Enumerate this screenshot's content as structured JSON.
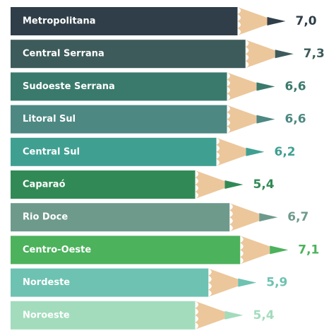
{
  "chart_data": {
    "type": "pencil-bar",
    "categories": [
      "Metropolitana",
      "Central Serrana",
      "Sudoeste Serrana",
      "Litoral Sul",
      "Central Sul",
      "Caparaó",
      "Rio Doce",
      "Centro-Oeste",
      "Nordeste",
      "Noroeste"
    ],
    "values": [
      7.0,
      7.3,
      6.6,
      6.6,
      6.2,
      5.4,
      6.7,
      7.1,
      5.9,
      5.4
    ],
    "value_labels": [
      "7,0",
      "7,3",
      "6,6",
      "6,6",
      "6,2",
      "5,4",
      "6,7",
      "7,1",
      "5,9",
      "5,4"
    ],
    "colors": [
      "#2f3e48",
      "#3d5b5a",
      "#3a7a6c",
      "#4d8882",
      "#3fa092",
      "#318a56",
      "#6e9a8c",
      "#4cb25c",
      "#6ec2b2",
      "#a2dcbc"
    ]
  }
}
